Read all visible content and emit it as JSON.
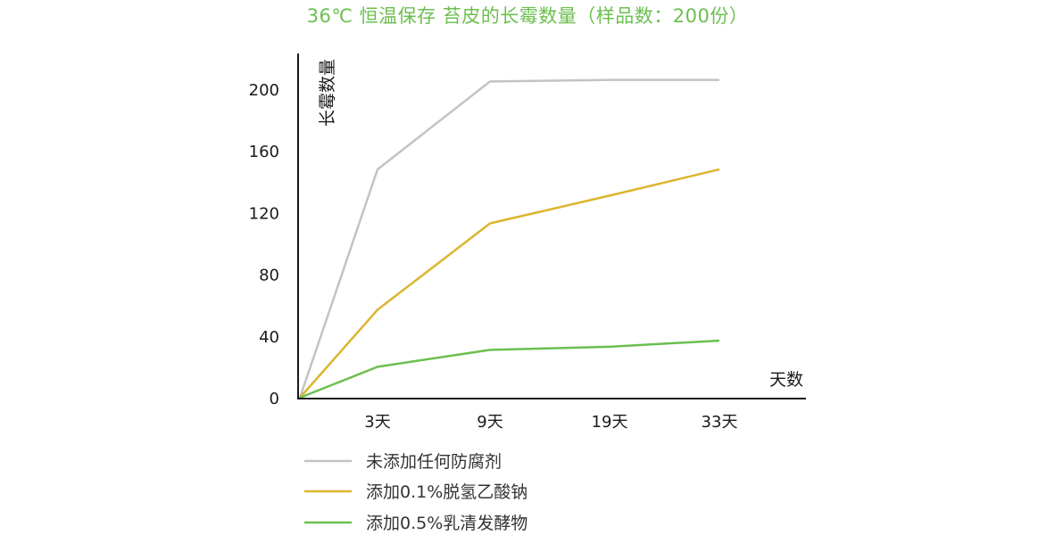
{
  "chart_data": {
    "type": "line",
    "title": "36℃ 恒温保存 苔皮的长霉数量（样品数：200份）",
    "xlabel": "天数",
    "ylabel": "长霉数量",
    "x_origin": 0,
    "categories": [
      "3天",
      "9天",
      "19天",
      "33天"
    ],
    "yticks": [
      0,
      40,
      80,
      120,
      160,
      200
    ],
    "ylim": [
      0,
      220
    ],
    "grid": false,
    "legend_position": "bottom-left",
    "series": [
      {
        "name": "未添加任何防腐剂",
        "color": "#c3c3c3",
        "values": [
          148,
          205,
          206,
          206
        ]
      },
      {
        "name": "添加0.1%脱氢乙酸钠",
        "color": "#dcb52e",
        "values": [
          57,
          113,
          131,
          148
        ]
      },
      {
        "name": "添加0.5%乳清发酵物",
        "color": "#6cbf4f",
        "values": [
          20,
          31,
          33,
          37
        ]
      }
    ]
  }
}
